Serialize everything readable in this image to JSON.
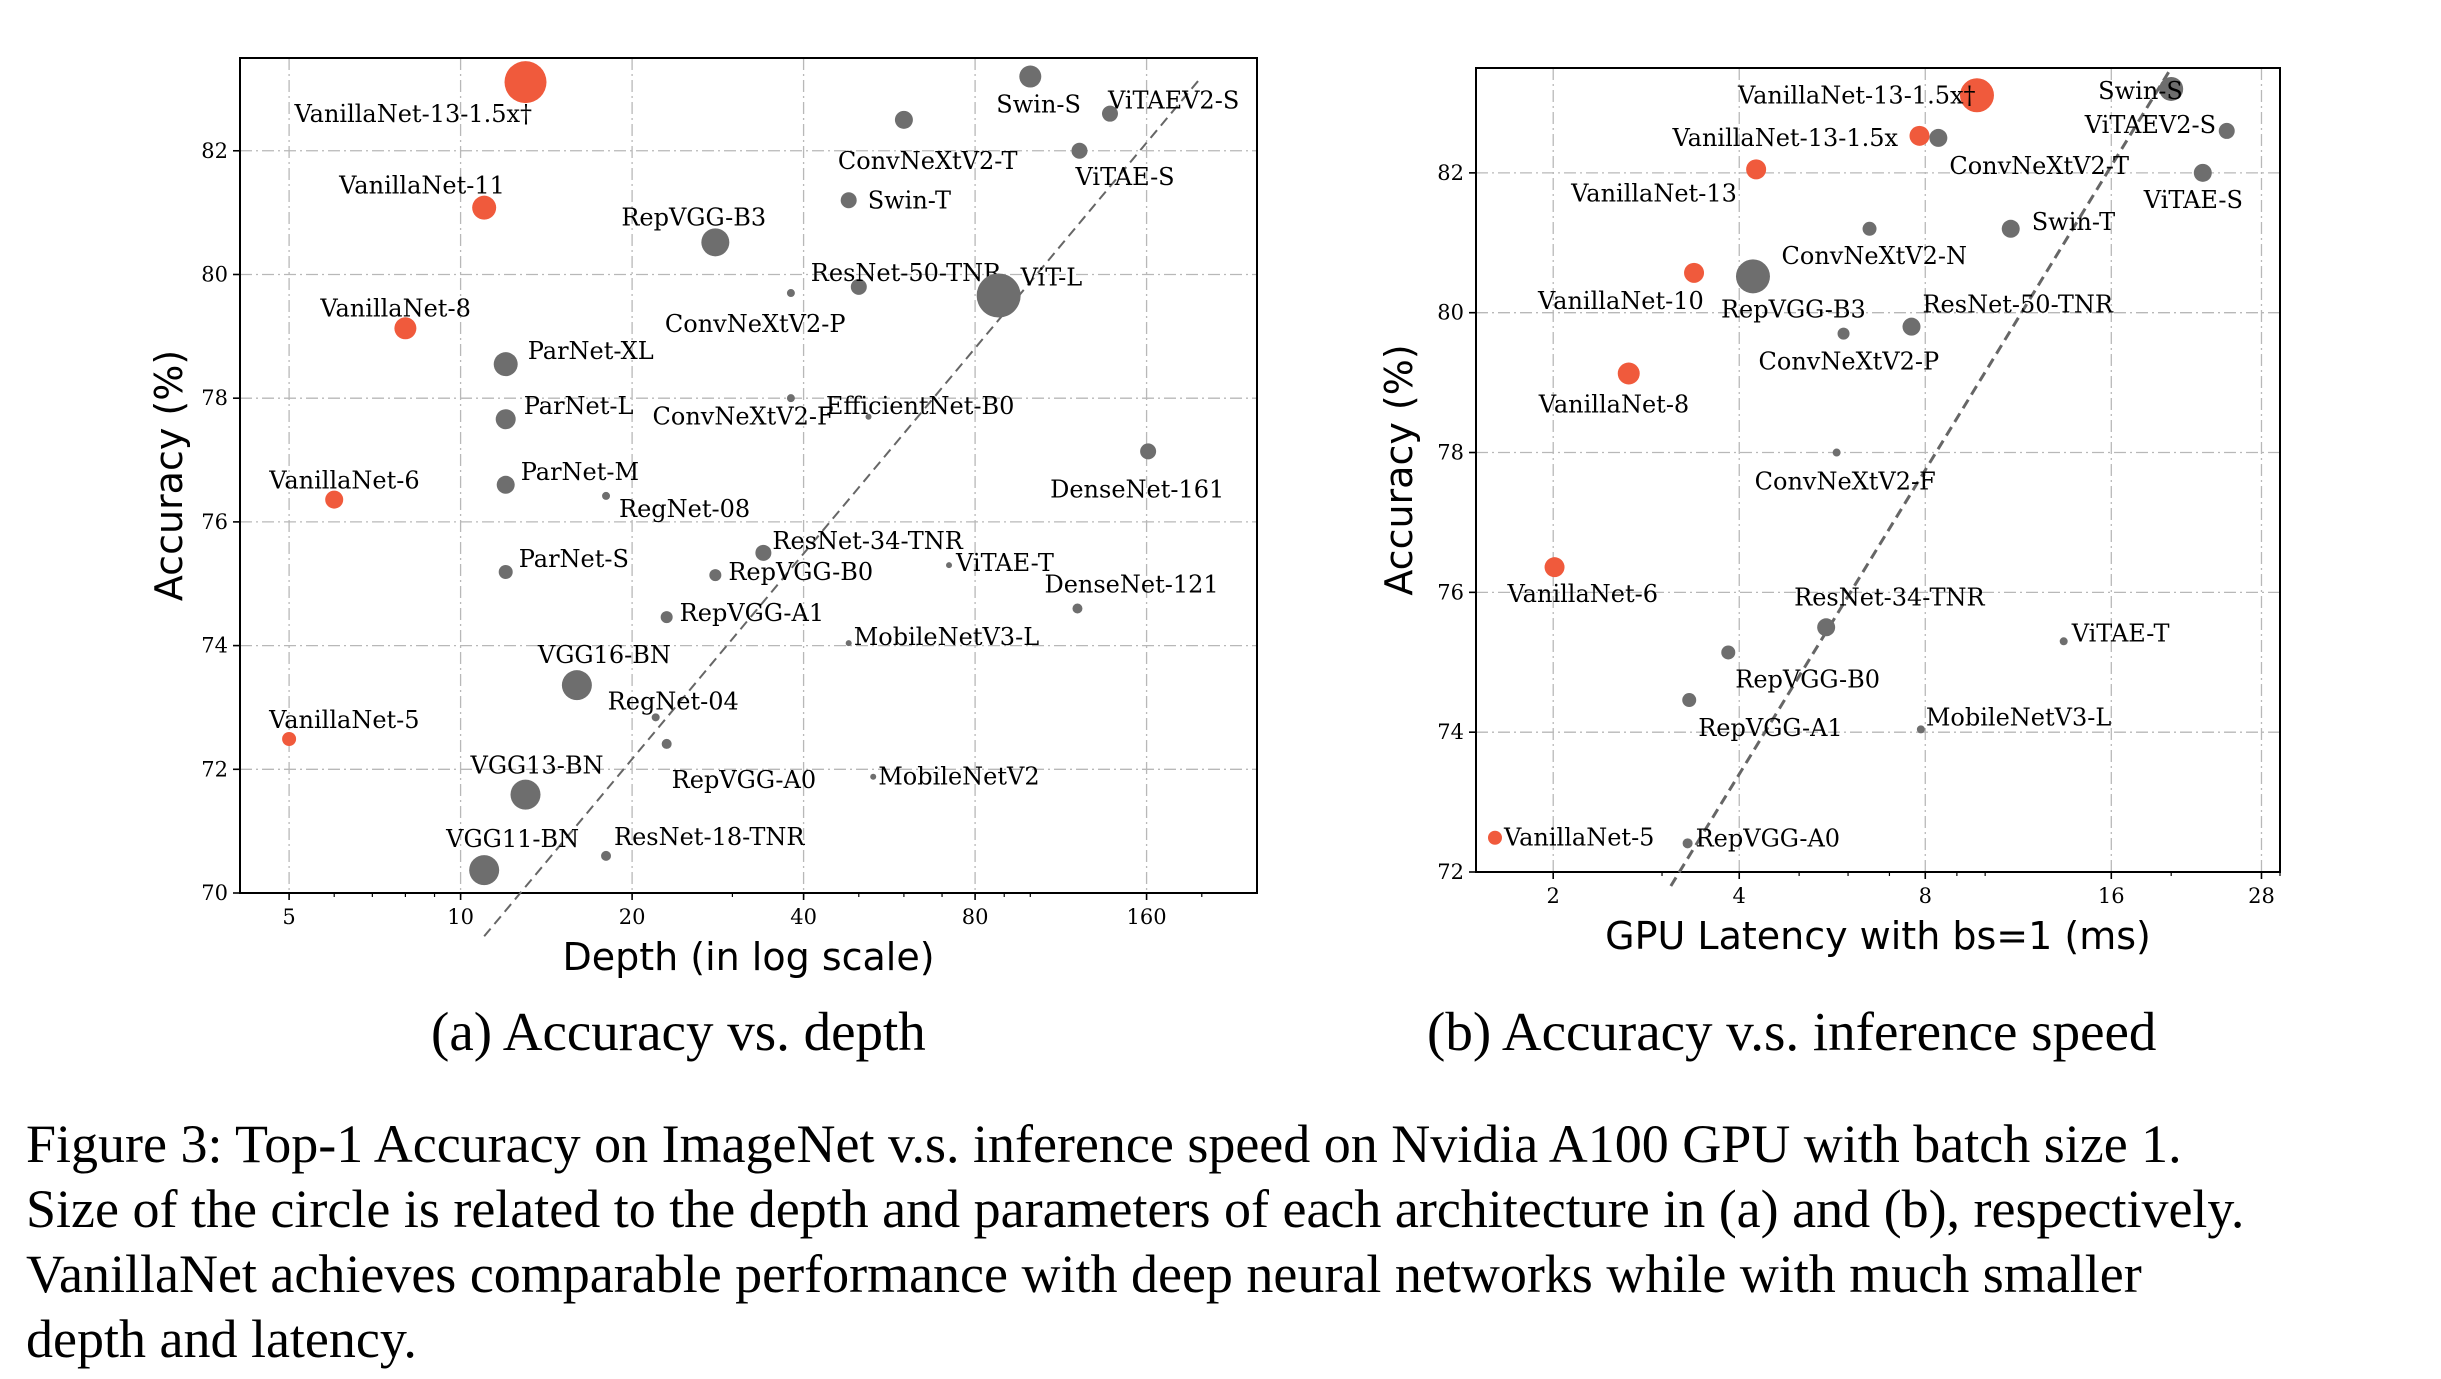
{
  "figure": {
    "caption_lines": [
      "Figure 3: Top-1 Accuracy on ImageNet v.s. inference speed on Nvidia A100 GPU with batch size 1.",
      "Size of the circle is related to the depth and parameters of each architecture in (a) and (b), respectively.",
      "VanillaNet achieves comparable performance with deep neural networks while with much smaller",
      "depth and latency."
    ],
    "colors": {
      "vanillanet": "#f05a3c",
      "other": "#6e6e6e"
    }
  },
  "chart_data": [
    {
      "type": "scatter",
      "subcaption": "(a) Accuracy vs. depth",
      "xlabel": "Depth (in log scale)",
      "ylabel": "Accuracy (%)",
      "xscale": "log",
      "xlim": [
        4.1,
        250
      ],
      "ylim": [
        70,
        83.5
      ],
      "xticks": [
        5,
        10,
        20,
        40,
        80,
        160
      ],
      "yticks": [
        70,
        72,
        74,
        76,
        78,
        80,
        82
      ],
      "grid": true,
      "trendline": [
        [
          11,
          69.3
        ],
        [
          200,
          83.2
        ]
      ],
      "points": [
        {
          "label": "VanillaNet-13-1.5x†",
          "x": 13,
          "y": 83.11,
          "size": 21,
          "group": "vanillanet",
          "ldx": -252,
          "ldy": 32
        },
        {
          "label": "VanillaNet-11",
          "x": 11,
          "y": 81.08,
          "size": 12,
          "group": "vanillanet",
          "ldx": -157,
          "ldy": -22
        },
        {
          "label": "VanillaNet-8",
          "x": 8,
          "y": 79.13,
          "size": 11,
          "group": "vanillanet",
          "ldx": -96,
          "ldy": -20
        },
        {
          "label": "VanillaNet-6",
          "x": 6,
          "y": 76.36,
          "size": 9,
          "group": "vanillanet",
          "ldx": -74,
          "ldy": -19
        },
        {
          "label": "VanillaNet-5",
          "x": 5,
          "y": 72.49,
          "size": 7,
          "group": "vanillanet",
          "ldx": -27,
          "ldy": -19
        },
        {
          "label": "Swin-S",
          "x": 100,
          "y": 83.2,
          "size": 11,
          "group": "other",
          "ldx": -45,
          "ldy": 28
        },
        {
          "label": "ViTAEV2-S",
          "x": 138,
          "y": 82.6,
          "size": 8,
          "group": "other",
          "ldx": -10,
          "ldy": -13
        },
        {
          "label": "ConvNeXtV2-T",
          "x": 60,
          "y": 82.5,
          "size": 9,
          "group": "other",
          "ldx": -75,
          "ldy": 41
        },
        {
          "label": "ViTAE-S",
          "x": 122,
          "y": 82.0,
          "size": 8,
          "group": "other",
          "ldx": -12,
          "ldy": 26
        },
        {
          "label": "RepVGG-B3",
          "x": 28,
          "y": 80.52,
          "size": 14,
          "group": "other",
          "ldx": -108,
          "ldy": -25
        },
        {
          "label": "Swin-T",
          "x": 48,
          "y": 81.2,
          "size": 8,
          "group": "other",
          "ldx": 11,
          "ldy": 0
        },
        {
          "label": "ResNet-50-TNR",
          "x": 50,
          "y": 79.8,
          "size": 8,
          "group": "other",
          "ldx": -56,
          "ldy": -14
        },
        {
          "label": "ConvNeXtV2-P",
          "x": 38,
          "y": 79.7,
          "size": 4,
          "group": "other",
          "ldx": -130,
          "ldy": 31
        },
        {
          "label": "ViT-L",
          "x": 88,
          "y": 79.66,
          "size": 22,
          "group": "other",
          "ldx": 0,
          "ldy": -18
        },
        {
          "label": "ParNet-XL",
          "x": 12,
          "y": 78.55,
          "size": 12,
          "group": "other",
          "ldx": 10,
          "ldy": -13
        },
        {
          "label": "ParNet-L",
          "x": 12,
          "y": 77.66,
          "size": 10,
          "group": "other",
          "ldx": 8,
          "ldy": -13
        },
        {
          "label": "ParNet-M",
          "x": 12,
          "y": 76.6,
          "size": 9,
          "group": "other",
          "ldx": 6,
          "ldy": -13
        },
        {
          "label": "ParNet-S",
          "x": 12,
          "y": 75.19,
          "size": 7,
          "group": "other",
          "ldx": 6,
          "ldy": -13
        },
        {
          "label": "EfficientNet-B0",
          "x": 38,
          "y": 78.0,
          "size": 4,
          "group": "other",
          "ldx": 31,
          "ldy": 8
        },
        {
          "label": "ConvNeXtV2-F",
          "x": 52,
          "y": 77.7,
          "size": 3,
          "group": "other",
          "ldx": -219,
          "ldy": 0
        },
        {
          "label": "DenseNet-161",
          "x": 161,
          "y": 77.14,
          "size": 8,
          "group": "other",
          "ldx": -106,
          "ldy": 38
        },
        {
          "label": "RegNet-08",
          "x": 18,
          "y": 76.42,
          "size": 4,
          "group": "other",
          "ldx": 9,
          "ldy": 13
        },
        {
          "label": "ResNet-34-TNR",
          "x": 34,
          "y": 75.5,
          "size": 8,
          "group": "other",
          "ldx": 1,
          "ldy": -12
        },
        {
          "label": "RepVGG-B0",
          "x": 28,
          "y": 75.14,
          "size": 6,
          "group": "other",
          "ldx": 7,
          "ldy": -3
        },
        {
          "label": "ViTAE-T",
          "x": 72,
          "y": 75.3,
          "size": 3,
          "group": "other",
          "ldx": 4,
          "ldy": -2
        },
        {
          "label": "DenseNet-121",
          "x": 121,
          "y": 74.6,
          "size": 5,
          "group": "other",
          "ldx": -38,
          "ldy": -24
        },
        {
          "label": "RepVGG-A1",
          "x": 23,
          "y": 74.46,
          "size": 6,
          "group": "other",
          "ldx": 7,
          "ldy": -4
        },
        {
          "label": "MobileNetV3-L",
          "x": 48,
          "y": 74.04,
          "size": 3,
          "group": "other",
          "ldx": 2,
          "ldy": -6
        },
        {
          "label": "VGG16-BN",
          "x": 16,
          "y": 73.36,
          "size": 15,
          "group": "other",
          "ldx": -54,
          "ldy": -30
        },
        {
          "label": "RegNet-04",
          "x": 22,
          "y": 72.84,
          "size": 4,
          "group": "other",
          "ldx": -52,
          "ldy": -16
        },
        {
          "label": "RepVGG-A0",
          "x": 23,
          "y": 72.41,
          "size": 5,
          "group": "other",
          "ldx": 0,
          "ldy": 36
        },
        {
          "label": "MobileNetV2",
          "x": 53,
          "y": 71.88,
          "size": 3,
          "group": "other",
          "ldx": 2,
          "ldy": 0
        },
        {
          "label": "VGG13-BN",
          "x": 13,
          "y": 71.59,
          "size": 15,
          "group": "other",
          "ldx": -70,
          "ldy": -29
        },
        {
          "label": "VGG11-BN",
          "x": 11,
          "y": 70.37,
          "size": 15,
          "group": "other",
          "ldx": -53,
          "ldy": -31
        },
        {
          "label": "ResNet-18-TNR",
          "x": 18,
          "y": 70.6,
          "size": 5,
          "group": "other",
          "ldx": 3,
          "ldy": -19
        }
      ]
    },
    {
      "type": "scatter",
      "subcaption": "(b) Accuracy v.s. inference speed",
      "xlabel": "GPU Latency with bs=1 (ms)",
      "ylabel": "Accuracy (%)",
      "xscale": "log",
      "xlim": [
        1.5,
        30
      ],
      "ylim": [
        72,
        83.5
      ],
      "xticks": [
        2,
        4,
        8,
        16,
        28
      ],
      "yticks": [
        72,
        74,
        76,
        78,
        80,
        82
      ],
      "grid": true,
      "trendline": [
        [
          3.1,
          71.8
        ],
        [
          20,
          83.5
        ]
      ],
      "points": [
        {
          "label": "VanillaNet-13-1.5x†",
          "x": 9.7,
          "y": 83.11,
          "size": 17,
          "group": "vanillanet",
          "ldx": -256,
          "ldy": 0
        },
        {
          "label": "VanillaNet-13-1.5x",
          "x": 7.83,
          "y": 82.53,
          "size": 10,
          "group": "vanillanet",
          "ldx": -257,
          "ldy": 2
        },
        {
          "label": "VanillaNet-13",
          "x": 4.26,
          "y": 82.05,
          "size": 10,
          "group": "vanillanet",
          "ldx": -195,
          "ldy": 24
        },
        {
          "label": "VanillaNet-10",
          "x": 3.38,
          "y": 80.57,
          "size": 10,
          "group": "vanillanet",
          "ldx": -166,
          "ldy": 28
        },
        {
          "label": "VanillaNet-8",
          "x": 2.65,
          "y": 79.13,
          "size": 11,
          "group": "vanillanet",
          "ldx": -101,
          "ldy": 31
        },
        {
          "label": "VanillaNet-6",
          "x": 2.01,
          "y": 76.36,
          "size": 10,
          "group": "vanillanet",
          "ldx": -57,
          "ldy": 27
        },
        {
          "label": "VanillaNet-5",
          "x": 1.61,
          "y": 72.49,
          "size": 7,
          "group": "vanillanet",
          "ldx": 2,
          "ldy": 0
        },
        {
          "label": "Swin-S",
          "x": 20.0,
          "y": 83.2,
          "size": 12,
          "group": "other",
          "ldx": -85,
          "ldy": 2
        },
        {
          "label": "ViTAEV2-S",
          "x": 24.6,
          "y": 82.6,
          "size": 8,
          "group": "other",
          "ldx": -150,
          "ldy": -6
        },
        {
          "label": "ConvNeXtV2-T",
          "x": 8.4,
          "y": 82.5,
          "size": 9,
          "group": "other",
          "ldx": 2,
          "ldy": 28
        },
        {
          "label": "ViTAE-S",
          "x": 22.5,
          "y": 82.0,
          "size": 9,
          "group": "other",
          "ldx": -68,
          "ldy": 27
        },
        {
          "label": "ConvNeXtV2-N",
          "x": 6.5,
          "y": 81.2,
          "size": 7,
          "group": "other",
          "ldx": -95,
          "ldy": 27
        },
        {
          "label": "Swin-T",
          "x": 11.0,
          "y": 81.2,
          "size": 9,
          "group": "other",
          "ldx": 12,
          "ldy": -7
        },
        {
          "label": "RepVGG-B3",
          "x": 4.21,
          "y": 80.52,
          "size": 17,
          "group": "other",
          "ldx": -49,
          "ldy": 33
        },
        {
          "label": "ResNet-50-TNR",
          "x": 7.6,
          "y": 79.8,
          "size": 9,
          "group": "other",
          "ldx": 2,
          "ldy": -22
        },
        {
          "label": "ConvNeXtV2-P",
          "x": 5.9,
          "y": 79.7,
          "size": 6,
          "group": "other",
          "ldx": -91,
          "ldy": 28
        },
        {
          "label": "ConvNeXtV2-F",
          "x": 5.75,
          "y": 78.0,
          "size": 4,
          "group": "other",
          "ldx": -86,
          "ldy": 29
        },
        {
          "label": "ResNet-34-TNR",
          "x": 5.53,
          "y": 75.5,
          "size": 9,
          "group": "other",
          "ldx": -41,
          "ldy": -30
        },
        {
          "label": "RepVGG-B0",
          "x": 3.84,
          "y": 75.14,
          "size": 7,
          "group": "other",
          "ldx": 0,
          "ldy": 27
        },
        {
          "label": "ViTAE-T",
          "x": 13.4,
          "y": 75.3,
          "size": 4,
          "group": "other",
          "ldx": 4,
          "ldy": -8
        },
        {
          "label": "RepVGG-A1",
          "x": 3.32,
          "y": 74.46,
          "size": 7,
          "group": "other",
          "ldx": 2,
          "ldy": 28
        },
        {
          "label": "MobileNetV3-L",
          "x": 7.87,
          "y": 74.04,
          "size": 4,
          "group": "other",
          "ldx": 1,
          "ldy": -12
        },
        {
          "label": "RepVGG-A0",
          "x": 3.3,
          "y": 72.41,
          "size": 5,
          "group": "other",
          "ldx": 3,
          "ldy": -5
        }
      ]
    }
  ]
}
